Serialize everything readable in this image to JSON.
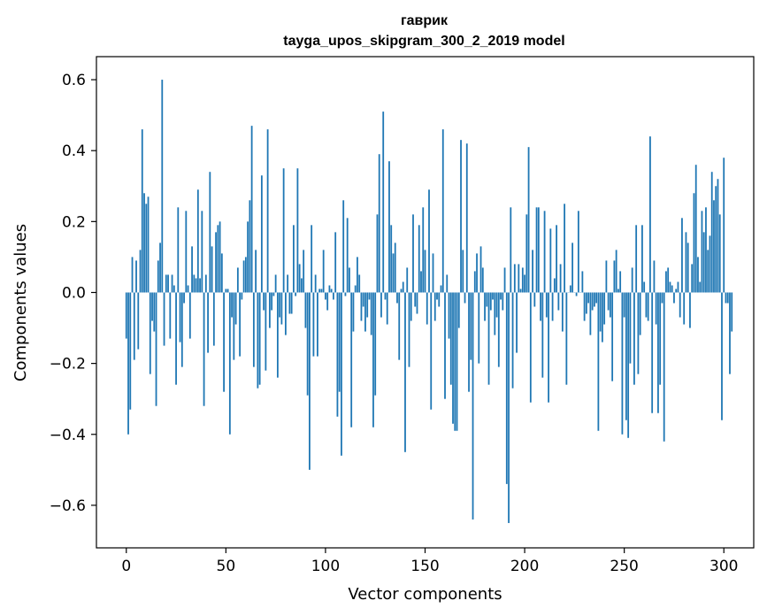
{
  "chart_data": {
    "type": "bar",
    "title": "гаврик",
    "subtitle": "tayga_upos_skipgram_300_2_2019 model",
    "xlabel": "Vector components",
    "ylabel": "Components values",
    "xlim": [
      -15,
      315
    ],
    "ylim": [
      -0.72,
      0.665
    ],
    "xticks": [
      0,
      50,
      100,
      150,
      200,
      250,
      300
    ],
    "xtick_labels": [
      "0",
      "50",
      "100",
      "150",
      "200",
      "250",
      "300"
    ],
    "yticks": [
      -0.6,
      -0.4,
      -0.2,
      0.0,
      0.2,
      0.4,
      0.6
    ],
    "ytick_labels": [
      "−0.6",
      "−0.4",
      "−0.2",
      "0.0",
      "0.2",
      "0.4",
      "0.6"
    ],
    "bar_color": "#1f77b4",
    "grid": false,
    "values": [
      -0.13,
      -0.4,
      -0.33,
      0.1,
      -0.19,
      0.09,
      -0.16,
      0.12,
      0.46,
      0.28,
      0.25,
      0.27,
      -0.23,
      -0.08,
      -0.11,
      -0.32,
      0.09,
      0.14,
      0.6,
      -0.15,
      0.05,
      0.05,
      -0.13,
      0.05,
      0.02,
      -0.26,
      0.24,
      -0.14,
      -0.21,
      -0.03,
      0.23,
      0.02,
      -0.13,
      0.13,
      0.05,
      0.04,
      0.29,
      0.04,
      0.23,
      -0.32,
      0.05,
      -0.17,
      0.34,
      0.13,
      -0.15,
      0.17,
      0.19,
      0.2,
      0.11,
      -0.28,
      0.01,
      0.01,
      -0.4,
      -0.07,
      -0.19,
      -0.09,
      0.07,
      -0.18,
      -0.02,
      0.09,
      0.1,
      0.2,
      0.26,
      0.47,
      -0.21,
      0.12,
      -0.27,
      -0.26,
      0.33,
      -0.05,
      -0.22,
      0.46,
      -0.1,
      -0.05,
      -0.01,
      0.05,
      -0.24,
      -0.07,
      -0.09,
      0.35,
      -0.12,
      0.05,
      -0.06,
      -0.06,
      0.19,
      -0.01,
      0.35,
      0.08,
      0.04,
      0.12,
      -0.1,
      -0.29,
      -0.5,
      0.19,
      -0.18,
      0.05,
      -0.18,
      0.01,
      0.01,
      0.12,
      -0.02,
      -0.05,
      0.02,
      0.01,
      -0.02,
      0.17,
      -0.35,
      -0.28,
      -0.46,
      0.26,
      -0.01,
      0.21,
      0.07,
      -0.38,
      -0.11,
      0.02,
      0.1,
      0.05,
      -0.08,
      -0.04,
      -0.11,
      -0.07,
      -0.02,
      -0.12,
      -0.38,
      -0.29,
      0.22,
      0.39,
      -0.07,
      0.51,
      -0.02,
      -0.09,
      0.37,
      0.19,
      0.11,
      0.14,
      -0.03,
      -0.19,
      0.01,
      0.03,
      -0.45,
      0.07,
      -0.21,
      -0.08,
      0.22,
      -0.04,
      -0.06,
      0.19,
      0.06,
      0.24,
      0.12,
      -0.09,
      0.29,
      -0.33,
      0.11,
      -0.08,
      -0.02,
      -0.04,
      0.02,
      0.46,
      -0.3,
      0.05,
      -0.13,
      -0.26,
      -0.37,
      -0.39,
      -0.39,
      -0.1,
      0.43,
      0.12,
      -0.03,
      0.42,
      -0.28,
      -0.19,
      -0.64,
      0.06,
      0.11,
      -0.2,
      0.13,
      0.07,
      -0.08,
      -0.04,
      -0.26,
      -0.05,
      -0.02,
      -0.12,
      -0.07,
      -0.21,
      -0.02,
      -0.05,
      0.07,
      -0.54,
      -0.65,
      0.24,
      -0.27,
      0.08,
      -0.17,
      0.08,
      0.01,
      0.07,
      0.05,
      0.22,
      0.41,
      -0.31,
      0.12,
      -0.04,
      0.24,
      0.24,
      -0.08,
      -0.24,
      0.23,
      -0.07,
      -0.31,
      0.18,
      -0.08,
      0.04,
      0.19,
      -0.05,
      0.08,
      -0.11,
      0.25,
      -0.26,
      0.0,
      0.02,
      0.14,
      0.0,
      -0.01,
      0.23,
      0.0,
      0.06,
      -0.08,
      -0.06,
      -0.03,
      -0.12,
      -0.05,
      -0.04,
      -0.03,
      -0.39,
      -0.11,
      -0.14,
      -0.09,
      0.09,
      -0.05,
      -0.07,
      -0.25,
      0.09,
      0.12,
      0.01,
      0.06,
      -0.4,
      -0.07,
      -0.36,
      -0.41,
      -0.2,
      0.07,
      -0.26,
      0.19,
      -0.23,
      -0.12,
      0.19,
      0.03,
      -0.07,
      -0.08,
      0.44,
      -0.34,
      0.09,
      -0.09,
      -0.34,
      -0.26,
      -0.03,
      -0.42,
      0.06,
      0.07,
      0.03,
      0.02,
      -0.03,
      0.01,
      0.03,
      -0.07,
      0.21,
      -0.09,
      0.17,
      0.14,
      -0.1,
      0.08,
      0.28,
      0.36,
      0.1,
      0.03,
      0.23,
      0.17,
      0.24,
      0.12,
      0.16,
      0.34,
      0.26,
      0.3,
      0.32,
      0.22,
      -0.36,
      0.38,
      -0.03,
      -0.03,
      -0.23,
      -0.11
    ]
  }
}
